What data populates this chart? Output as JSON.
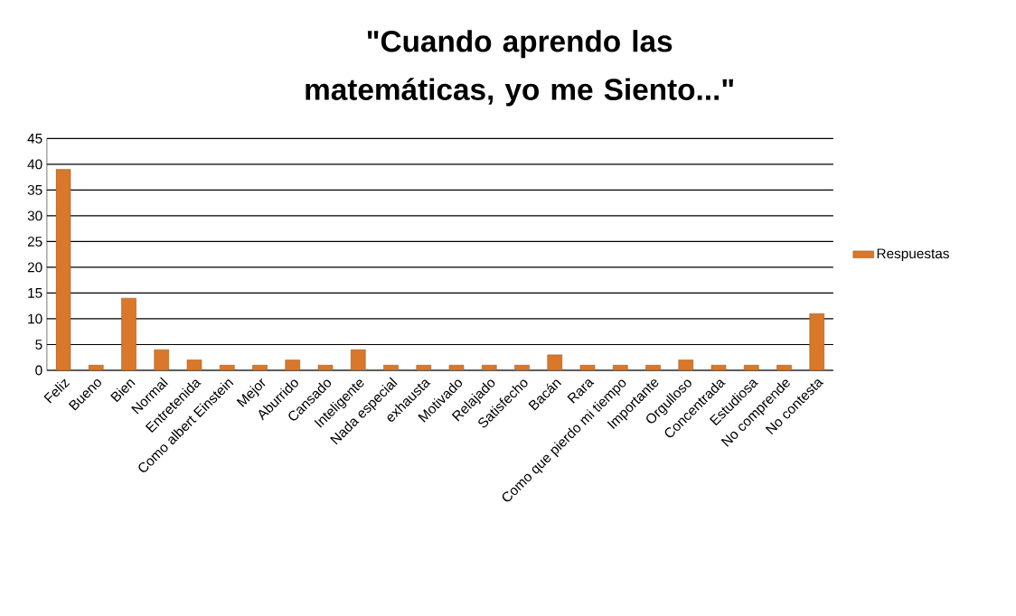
{
  "chart_data": {
    "type": "bar",
    "title": "\"Cuando aprendo las matemáticas, yo me Siento...\"",
    "categories": [
      "Feliz",
      "Bueno",
      "Bien",
      "Normal",
      "Entretenida",
      "Como albert Einstein",
      "Mejor",
      "Aburrido",
      "Cansado",
      "Inteligente",
      "Nada especial",
      "exhausta",
      "Motivado",
      "Relajado",
      "Satisfecho",
      "Bacán",
      "Rara",
      "Como que pierdo mi tiempo",
      "Importante",
      "Orgulloso",
      "Concentrada",
      "Estudiosa",
      "No comprende",
      "No contesta"
    ],
    "series": [
      {
        "name": "Respuestas",
        "color": "#d9782a",
        "values": [
          39,
          1,
          14,
          4,
          2,
          1,
          1,
          2,
          1,
          4,
          1,
          1,
          1,
          1,
          1,
          3,
          1,
          1,
          1,
          2,
          1,
          1,
          1,
          11
        ]
      }
    ],
    "ylim": [
      0,
      45
    ],
    "yticks": [
      0,
      5,
      10,
      15,
      20,
      25,
      30,
      35,
      40,
      45
    ],
    "grid": "y",
    "legend": "right"
  }
}
